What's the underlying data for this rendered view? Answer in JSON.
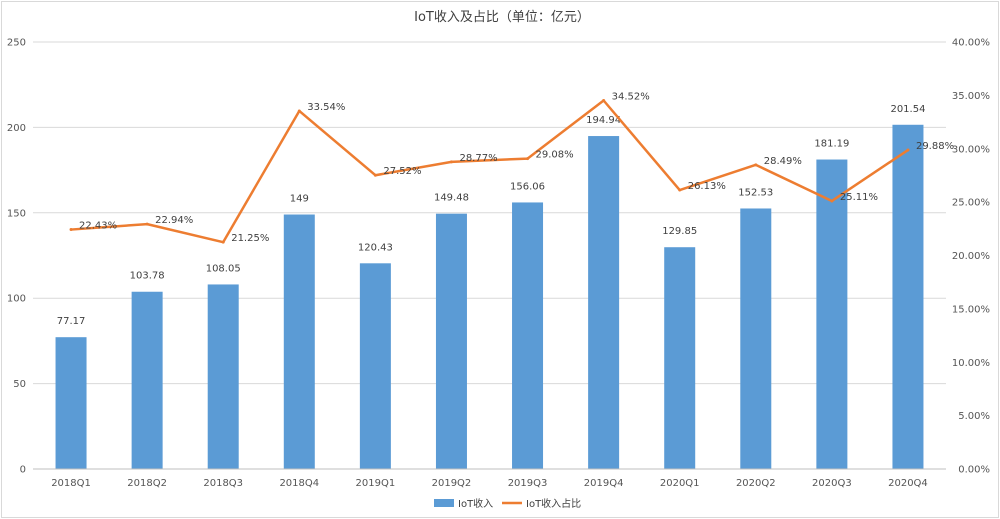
{
  "chart_data": {
    "type": "bar",
    "title": "IoT收入及占比（单位：亿元）",
    "categories": [
      "2018Q1",
      "2018Q2",
      "2018Q3",
      "2018Q4",
      "2019Q1",
      "2019Q2",
      "2019Q3",
      "2019Q4",
      "2020Q1",
      "2020Q2",
      "2020Q3",
      "2020Q4"
    ],
    "series": [
      {
        "name": "IoT收入",
        "type": "bar",
        "axis": "left",
        "color": "#5b9bd5",
        "values": [
          77.17,
          103.78,
          108.05,
          149,
          120.43,
          149.48,
          156.06,
          194.94,
          129.85,
          152.53,
          181.19,
          201.54
        ],
        "labels": [
          "77.17",
          "103.78",
          "108.05",
          "149",
          "120.43",
          "149.48",
          "156.06",
          "194.94",
          "129.85",
          "152.53",
          "181.19",
          "201.54"
        ]
      },
      {
        "name": "IoT收入占比",
        "type": "line",
        "axis": "right",
        "color": "#ed7d31",
        "values": [
          22.43,
          22.94,
          21.25,
          33.54,
          27.52,
          28.77,
          29.08,
          34.52,
          26.13,
          28.49,
          25.11,
          29.88
        ],
        "labels": [
          "22.43%",
          "22.94%",
          "21.25%",
          "33.54%",
          "27.52%",
          "28.77%",
          "29.08%",
          "34.52%",
          "26.13%",
          "28.49%",
          "25.11%",
          "29.88%"
        ]
      }
    ],
    "y_left": {
      "ylim": [
        0,
        250
      ],
      "ticks": [
        "0",
        "50",
        "100",
        "150",
        "200",
        "250"
      ]
    },
    "y_right": {
      "ylim": [
        0,
        40
      ],
      "ticks": [
        "0.00%",
        "5.00%",
        "10.00%",
        "15.00%",
        "20.00%",
        "25.00%",
        "30.00%",
        "35.00%",
        "40.00%"
      ]
    },
    "grid": true,
    "legend": "bottom-center"
  }
}
